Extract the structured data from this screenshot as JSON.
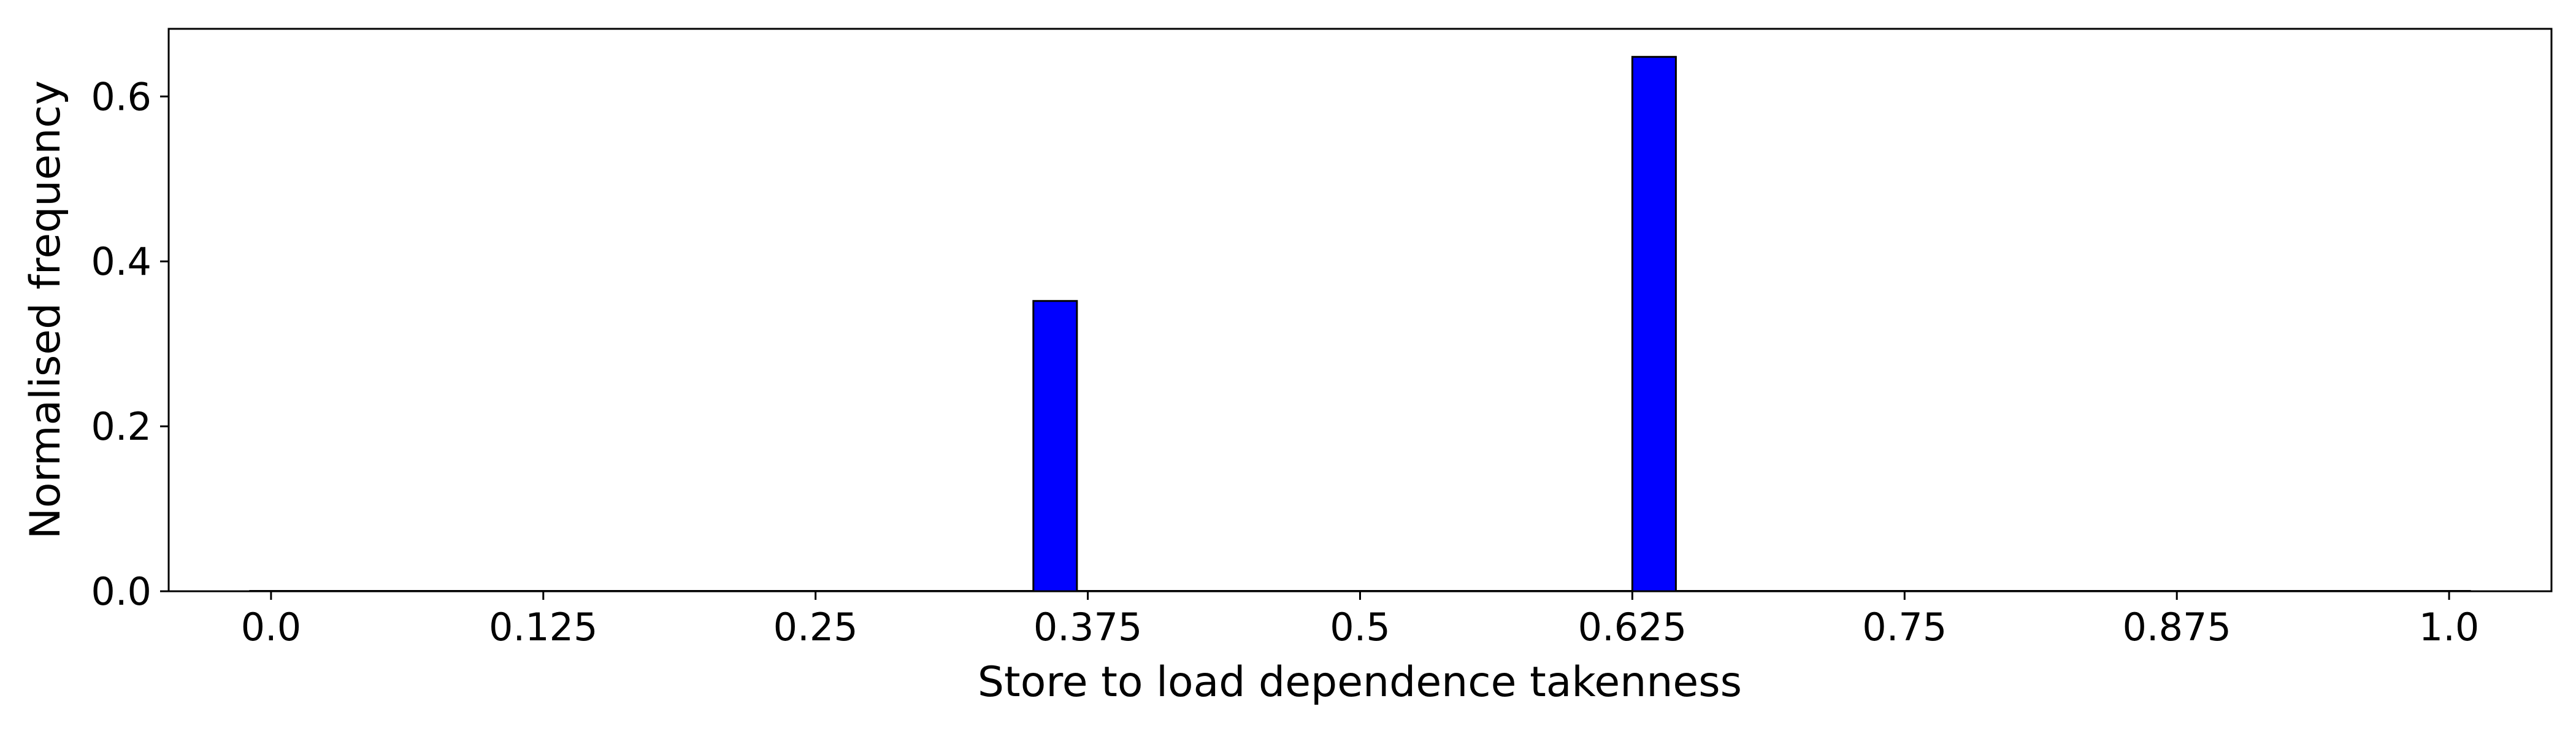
{
  "chart_data": {
    "type": "bar",
    "title": "",
    "xlabel": "Store to load dependence takenness",
    "ylabel": "Normalised frequency",
    "xlim": [
      -0.047,
      1.047
    ],
    "ylim": [
      0,
      0.682
    ],
    "x_ticks": [
      0.0,
      0.125,
      0.25,
      0.375,
      0.5,
      0.625,
      0.75,
      0.875,
      1.0
    ],
    "x_tick_labels": [
      "0.0",
      "0.125",
      "0.25",
      "0.375",
      "0.5",
      "0.625",
      "0.75",
      "0.875",
      "1.0"
    ],
    "y_ticks": [
      0.0,
      0.2,
      0.4,
      0.6
    ],
    "y_tick_labels": [
      "0.0",
      "0.2",
      "0.4",
      "0.6"
    ],
    "bar_width": 0.02,
    "bars": [
      {
        "x": 0.36,
        "value": 0.352
      },
      {
        "x": 0.635,
        "value": 0.648
      }
    ],
    "bar_color": "#0000ff",
    "edge_color": "#000000",
    "grid": false,
    "legend": null
  }
}
